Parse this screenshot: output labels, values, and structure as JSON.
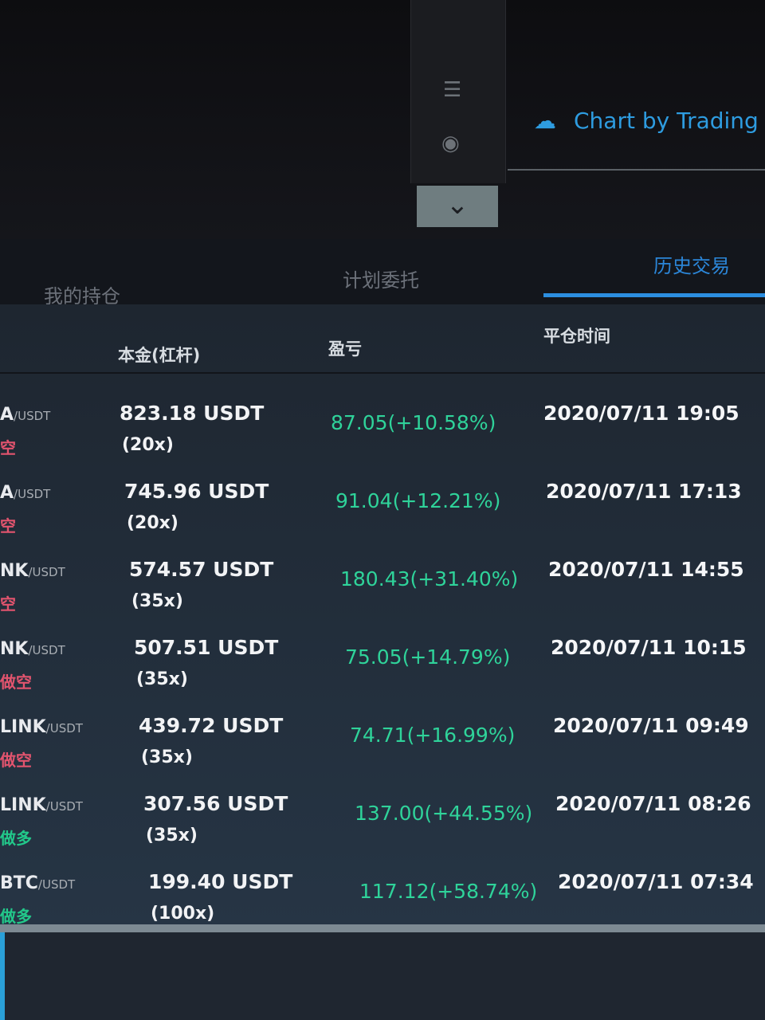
{
  "toolbar": {
    "icons": [
      "list-icon",
      "eye-icon"
    ],
    "collapse_icon": "chevron-down-icon"
  },
  "brand": {
    "label": "Chart by Trading",
    "icon": "cloud-chart-icon",
    "color": "#2e9ce0"
  },
  "tabs": [
    {
      "label": "我的持仓",
      "active": false
    },
    {
      "label": "计划委托",
      "active": false
    },
    {
      "label": "历史交易",
      "active": true
    }
  ],
  "table": {
    "headers": [
      "本金(杠杆)",
      "盈亏",
      "平仓时间"
    ],
    "rows": [
      {
        "pair": "A",
        "quote": "/USDT",
        "side": "空",
        "side_color": "#e2546e",
        "amount": "823.18  USDT",
        "leverage": "(20x)",
        "pnl": "87.05(+10.58%)",
        "time": "2020/07/11 19:05"
      },
      {
        "pair": "A",
        "quote": "/USDT",
        "side": "空",
        "side_color": "#e2546e",
        "amount": "745.96  USDT",
        "leverage": "(20x)",
        "pnl": "91.04(+12.21%)",
        "time": "2020/07/11 17:13"
      },
      {
        "pair": "NK",
        "quote": "/USDT",
        "side": "空",
        "side_color": "#e2546e",
        "amount": "574.57  USDT",
        "leverage": "(35x)",
        "pnl": "180.43(+31.40%)",
        "time": "2020/07/11 14:55"
      },
      {
        "pair": "NK",
        "quote": "/USDT",
        "side": "做空",
        "side_color": "#e2546e",
        "amount": "507.51  USDT",
        "leverage": "(35x)",
        "pnl": "75.05(+14.79%)",
        "time": "2020/07/11 10:15"
      },
      {
        "pair": "LINK",
        "quote": "/USDT",
        "side": "做空",
        "side_color": "#e2546e",
        "amount": "439.72  USDT",
        "leverage": "(35x)",
        "pnl": "74.71(+16.99%)",
        "time": "2020/07/11 09:49"
      },
      {
        "pair": "LINK",
        "quote": "/USDT",
        "side": "做多",
        "side_color": "#22c88a",
        "amount": "307.56  USDT",
        "leverage": "(35x)",
        "pnl": "137.00(+44.55%)",
        "time": "2020/07/11 08:26"
      },
      {
        "pair": "BTC",
        "quote": "/USDT",
        "side": "做多",
        "side_color": "#22c88a",
        "amount": "199.40  USDT",
        "leverage": "(100x)",
        "pnl": "117.12(+58.74%)",
        "time": "2020/07/11 07:34"
      }
    ]
  }
}
